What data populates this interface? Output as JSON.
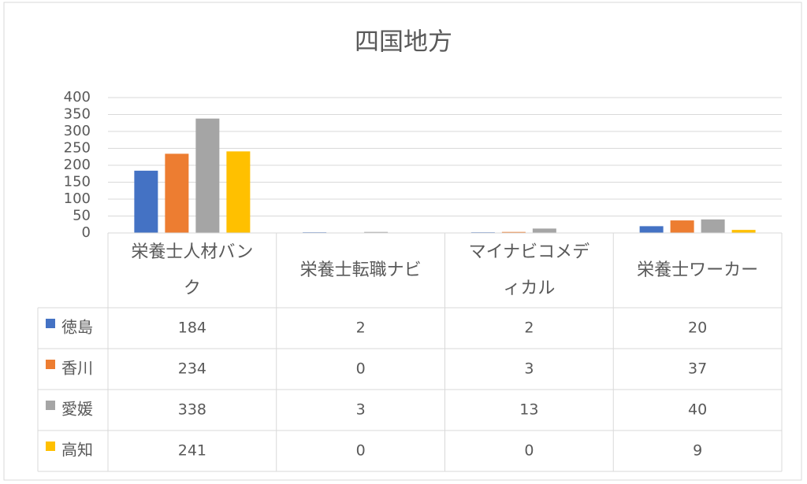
{
  "chart_data": {
    "type": "bar",
    "title": "四国地方",
    "categories": [
      "栄養士人材バンク",
      "栄養士転職ナビ",
      "マイナビコメディカル",
      "栄養士ワーカー"
    ],
    "series": [
      {
        "name": "徳島",
        "color": "#4472c4",
        "values": [
          184,
          2,
          2,
          20
        ]
      },
      {
        "name": "香川",
        "color": "#ed7d31",
        "values": [
          234,
          0,
          3,
          37
        ]
      },
      {
        "name": "愛媛",
        "color": "#a5a5a5",
        "values": [
          338,
          3,
          13,
          40
        ]
      },
      {
        "name": "高知",
        "color": "#ffc000",
        "values": [
          241,
          0,
          0,
          9
        ]
      }
    ],
    "ylim": [
      0,
      400
    ],
    "yticks": [
      0,
      50,
      100,
      150,
      200,
      250,
      300,
      350,
      400
    ],
    "grid": true,
    "data_table": true
  }
}
